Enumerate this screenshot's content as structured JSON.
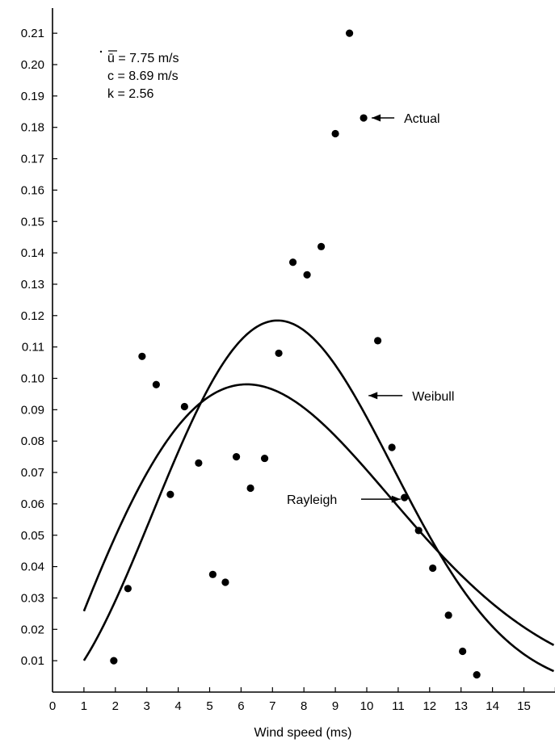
{
  "chart_data": {
    "type": "scatter",
    "title": "",
    "xlabel": "Wind speed (ms)",
    "ylabel": "",
    "xlim": [
      0,
      16
    ],
    "ylim": [
      0,
      0.215
    ],
    "x_ticks": [
      "0",
      "1",
      "2",
      "3",
      "4",
      "5",
      "6",
      "7",
      "8",
      "9",
      "10",
      "11",
      "12",
      "13",
      "14",
      "15"
    ],
    "y_ticks": [
      "0.01",
      "0.02",
      "0.03",
      "0.04",
      "0.05",
      "0.06",
      "0.07",
      "0.08",
      "0.09",
      "0.10",
      "0.11",
      "0.12",
      "0.13",
      "0.14",
      "0.15",
      "0.16",
      "0.17",
      "0.18",
      "0.19",
      "0.20",
      "0.21"
    ],
    "grid": false,
    "parameters": [
      "ū = 7.75 m/s",
      "c = 8.69 m/s",
      "k = 2.56"
    ],
    "series": [
      {
        "name": "Actual",
        "kind": "points",
        "color": "#000000",
        "points": [
          [
            1.95,
            0.01
          ],
          [
            2.4,
            0.033
          ],
          [
            2.85,
            0.107
          ],
          [
            3.3,
            0.098
          ],
          [
            3.75,
            0.063
          ],
          [
            4.2,
            0.091
          ],
          [
            4.65,
            0.073
          ],
          [
            5.1,
            0.0375
          ],
          [
            5.5,
            0.035
          ],
          [
            5.85,
            0.075
          ],
          [
            6.3,
            0.065
          ],
          [
            6.75,
            0.0745
          ],
          [
            7.2,
            0.108
          ],
          [
            7.65,
            0.137
          ],
          [
            8.1,
            0.133
          ],
          [
            8.55,
            0.142
          ],
          [
            9.0,
            0.178
          ],
          [
            9.45,
            0.21
          ],
          [
            9.9,
            0.183
          ],
          [
            10.35,
            0.112
          ],
          [
            10.8,
            0.078
          ],
          [
            11.2,
            0.062
          ],
          [
            11.65,
            0.0515
          ],
          [
            12.1,
            0.0395
          ],
          [
            12.6,
            0.0245
          ],
          [
            13.05,
            0.013
          ],
          [
            13.5,
            0.0055
          ]
        ]
      },
      {
        "name": "Weibull",
        "kind": "curve",
        "k": 2.56,
        "c": 8.69,
        "x_start": 1,
        "color": "#000000"
      },
      {
        "name": "Rayleigh",
        "kind": "curve",
        "k": 2.0,
        "c": 8.745,
        "x_start": 1,
        "color": "#000000"
      }
    ],
    "annotations": [
      {
        "label": "Actual",
        "series": "Actual",
        "target": [
          9.9,
          0.183
        ]
      },
      {
        "label": "Weibull",
        "series": "Weibull",
        "target": [
          9.8,
          0.0945
        ]
      },
      {
        "label": "Rayleigh",
        "series": "Rayleigh",
        "target": [
          11.1,
          0.0615
        ]
      }
    ]
  }
}
